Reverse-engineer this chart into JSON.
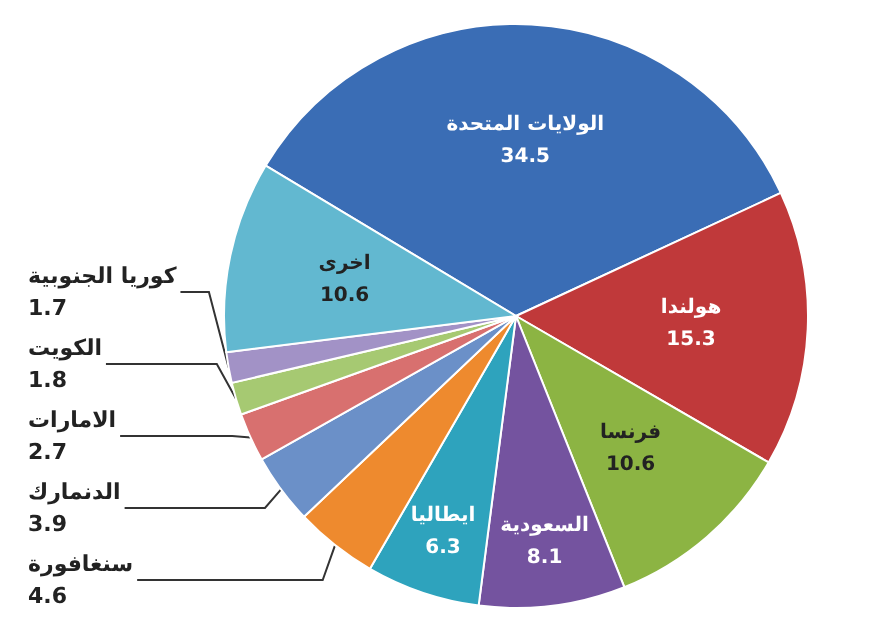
{
  "chart_data": {
    "type": "pie",
    "categories": [
      "الولايات المتحدة",
      "هولندا",
      "فرنسا",
      "السعودية",
      "ايطاليا",
      "سنغافورة",
      "الدنمارك",
      "الامارات",
      "الكويت",
      "كوريا الجنوبية",
      "اخرى"
    ],
    "values": [
      34.5,
      15.3,
      10.6,
      8.1,
      6.3,
      4.6,
      3.9,
      2.7,
      1.8,
      1.7,
      10.6
    ],
    "colors": [
      "#3a6db5",
      "#c0393a",
      "#8cb443",
      "#74539f",
      "#2ea3bd",
      "#ee8a2e",
      "#6b90c8",
      "#d8706f",
      "#a6c972",
      "#a292c6",
      "#62b8d0"
    ],
    "data_labels": true,
    "legend": false
  }
}
